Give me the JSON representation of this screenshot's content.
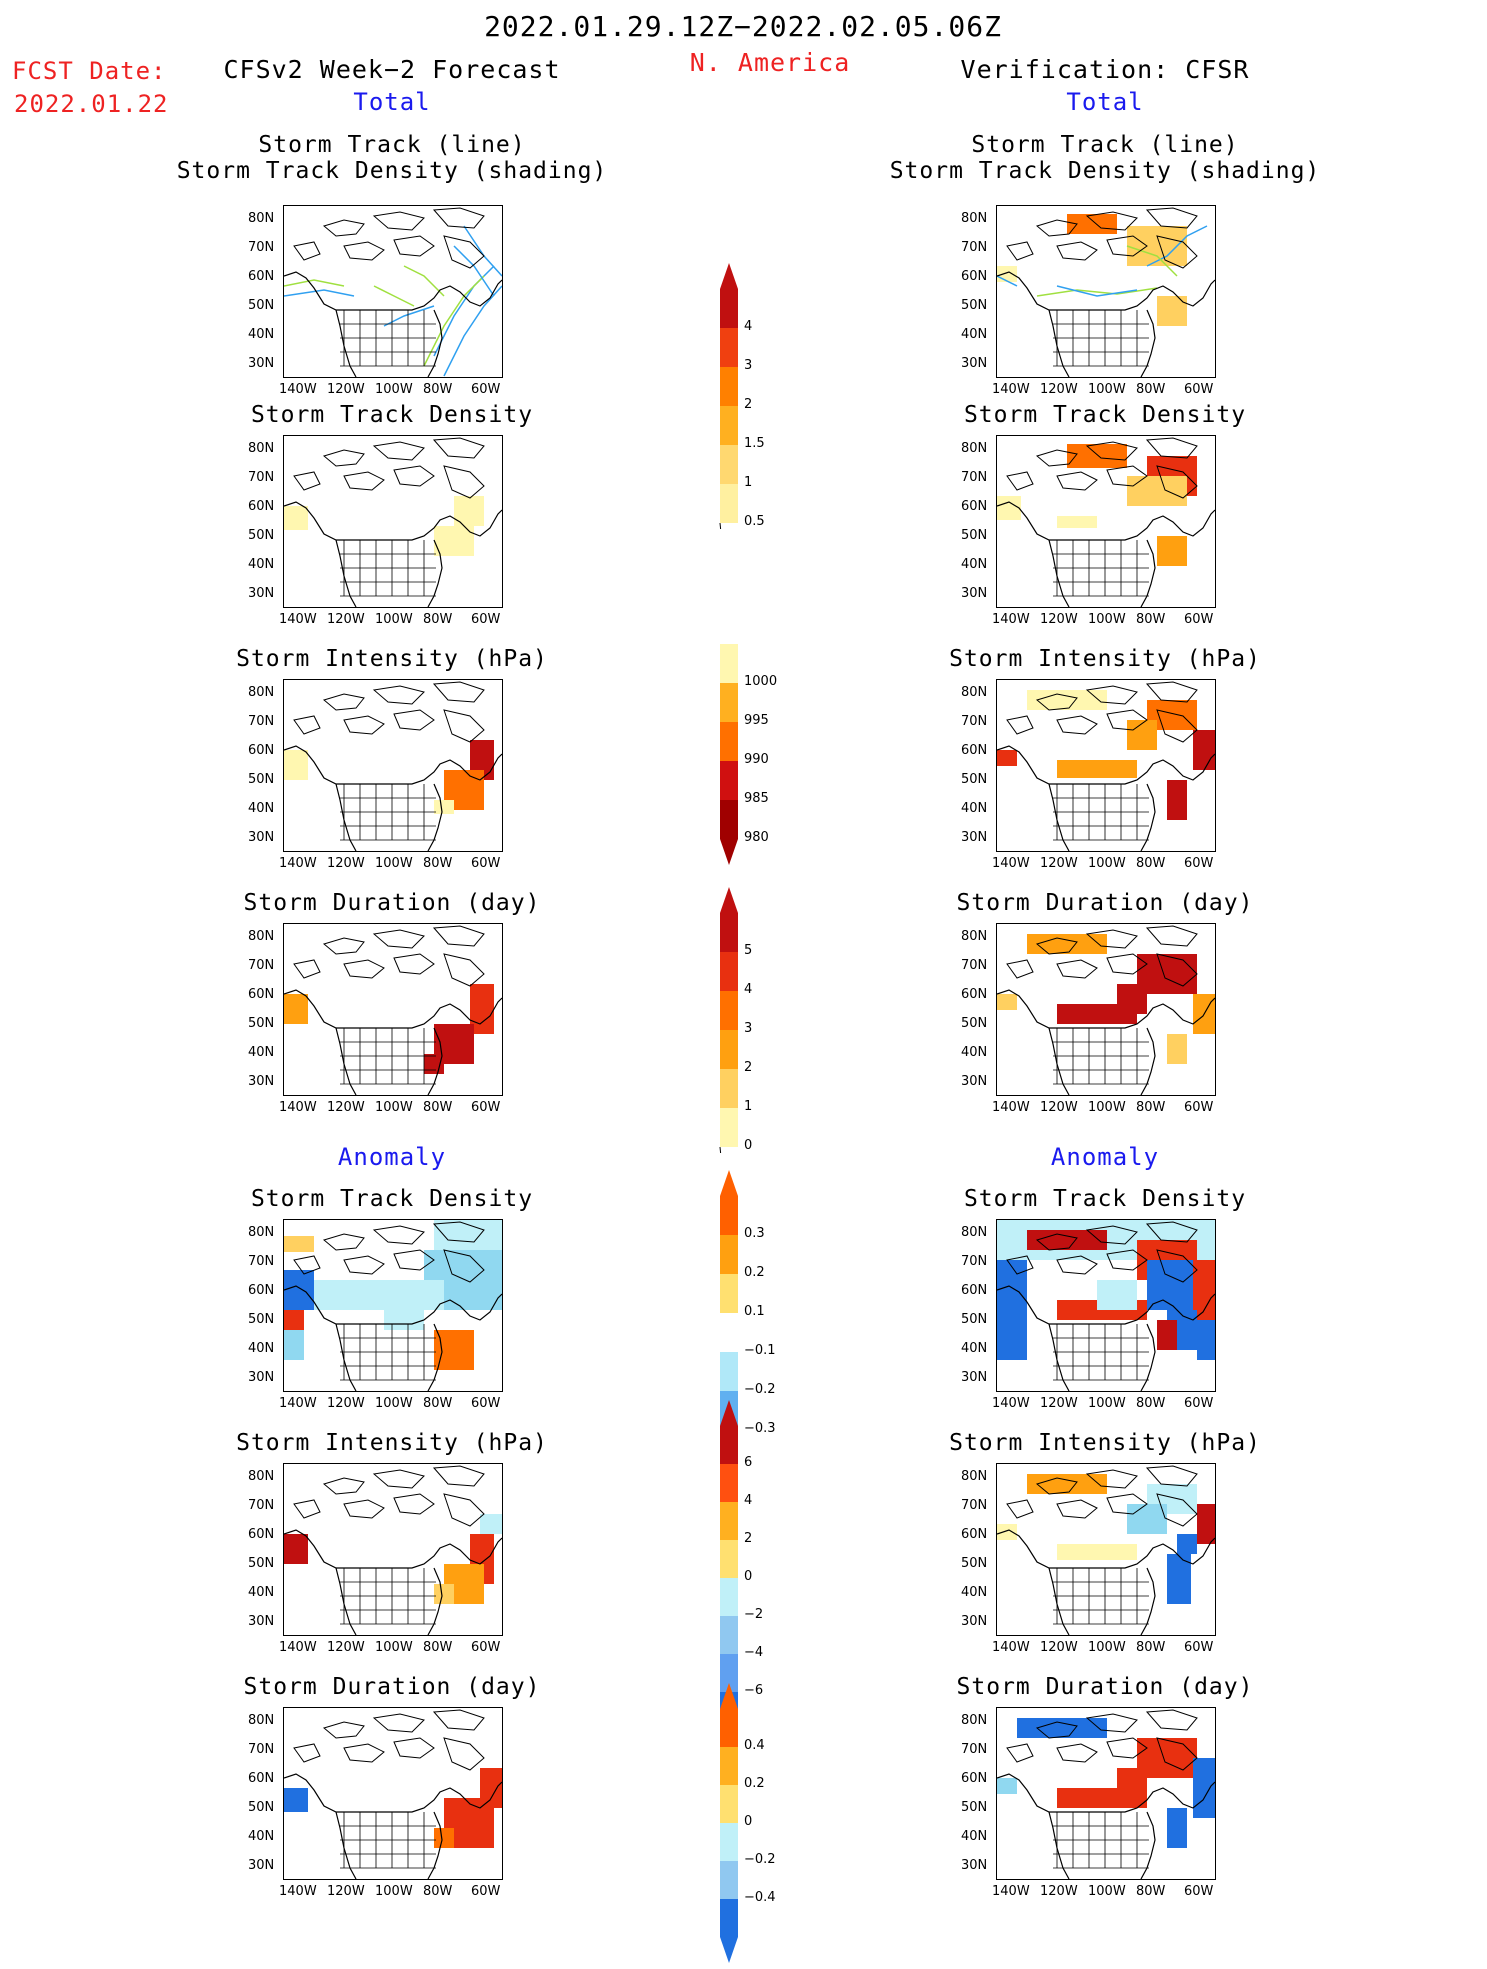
{
  "header": {
    "date_range": "2022.01.29.12Z−2022.02.05.06Z",
    "region": "N. America",
    "fcst_date_label": "FCST Date:",
    "fcst_date": "2022.01.22",
    "left_title": "CFSv2 Week−2 Forecast",
    "right_title": "Verification: CFSR",
    "total_left": "Total",
    "total_right": "Total",
    "anomaly_left": "Anomaly",
    "anomaly_right": "Anomaly"
  },
  "panel_titles": {
    "track_line": "Storm Track (line)",
    "track_density_shading": "Storm Track Density (shading)",
    "track_density": "Storm Track Density",
    "intensity": "Storm Intensity (hPa)",
    "duration": "Storm Duration (day)"
  },
  "lat_labels": [
    "80N",
    "70N",
    "60N",
    "50N",
    "40N",
    "30N"
  ],
  "lon_labels": [
    "140W",
    "120W",
    "100W",
    "80W",
    "60W"
  ],
  "colorbars": {
    "density_total": [
      "4",
      "3",
      "2",
      "1.5",
      "1",
      "0.5"
    ],
    "intensity_total": [
      "1000",
      "995",
      "990",
      "985",
      "980"
    ],
    "duration_total": [
      "5",
      "4",
      "3",
      "2",
      "1",
      "0"
    ],
    "density_anom": [
      "0.3",
      "0.2",
      "0.1",
      "−0.1",
      "−0.2",
      "−0.3"
    ],
    "intensity_anom": [
      "6",
      "4",
      "2",
      "0",
      "−2",
      "−4",
      "−6"
    ],
    "duration_anom": [
      "0.4",
      "0.2",
      "0",
      "−0.2",
      "−0.4"
    ]
  },
  "colors": {
    "title_red": "#ee2222",
    "label_blue": "#1a1aee",
    "warm": [
      "#fff7b0",
      "#ffe080",
      "#ffb020",
      "#ff8000",
      "#f04010",
      "#d01010",
      "#a00000"
    ],
    "cool": [
      "#c0f0f8",
      "#90d8f0",
      "#60a8f0",
      "#2070e0",
      "#1050c0"
    ]
  }
}
